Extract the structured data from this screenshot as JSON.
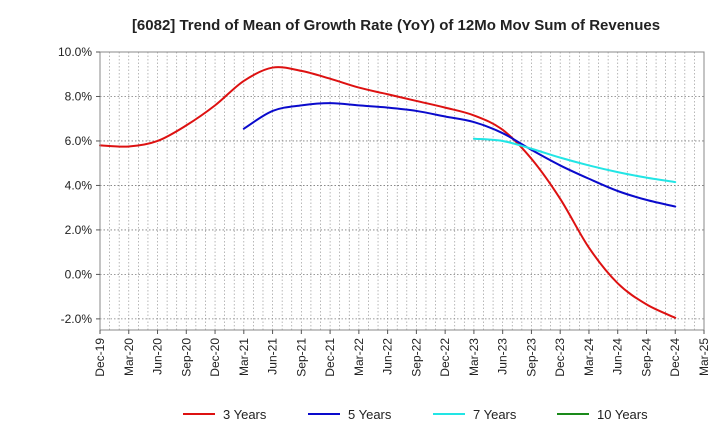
{
  "chart_data": {
    "type": "line",
    "title": "[6082]  Trend of Mean of Growth Rate (YoY) of 12Mo Mov Sum of Revenues",
    "xlabel": "",
    "ylabel": "",
    "ylim": [
      -2.5,
      10.0
    ],
    "yticks": [
      10.0,
      8.0,
      6.0,
      4.0,
      2.0,
      0.0,
      -2.0
    ],
    "ytick_labels": [
      "10.0%",
      "8.0%",
      "6.0%",
      "4.0%",
      "2.0%",
      "0.0%",
      "-2.0%"
    ],
    "categories": [
      "Dec-19",
      "Mar-20",
      "Jun-20",
      "Sep-20",
      "Dec-20",
      "Mar-21",
      "Jun-21",
      "Sep-21",
      "Dec-21",
      "Mar-22",
      "Jun-22",
      "Sep-22",
      "Dec-22",
      "Mar-23",
      "Jun-23",
      "Sep-23",
      "Dec-23",
      "Mar-24",
      "Jun-24",
      "Sep-24",
      "Dec-24",
      "Mar-25"
    ],
    "grid": true,
    "legend_position": "bottom",
    "series": [
      {
        "name": "3 Years",
        "color": "#dd1111",
        "values": [
          5.8,
          5.75,
          6.0,
          6.7,
          7.6,
          8.7,
          9.3,
          9.15,
          8.8,
          8.4,
          8.1,
          7.8,
          7.5,
          7.15,
          6.5,
          5.2,
          3.4,
          1.2,
          -0.4,
          -1.35,
          -1.95,
          null
        ]
      },
      {
        "name": "5 Years",
        "color": "#0a0acc",
        "values": [
          null,
          null,
          null,
          null,
          null,
          6.55,
          7.35,
          7.6,
          7.7,
          7.6,
          7.5,
          7.35,
          7.1,
          6.85,
          6.35,
          5.6,
          4.9,
          4.3,
          3.75,
          3.35,
          3.05,
          null
        ]
      },
      {
        "name": "7 Years",
        "color": "#22e5e5",
        "values": [
          null,
          null,
          null,
          null,
          null,
          null,
          null,
          null,
          null,
          null,
          null,
          null,
          null,
          6.1,
          6.0,
          5.65,
          5.25,
          4.9,
          4.6,
          4.35,
          4.15,
          null
        ]
      },
      {
        "name": "10 Years",
        "color": "#1a8a1a",
        "values": [
          null,
          null,
          null,
          null,
          null,
          null,
          null,
          null,
          null,
          null,
          null,
          null,
          null,
          null,
          null,
          null,
          null,
          null,
          null,
          null,
          null,
          null
        ]
      }
    ]
  }
}
